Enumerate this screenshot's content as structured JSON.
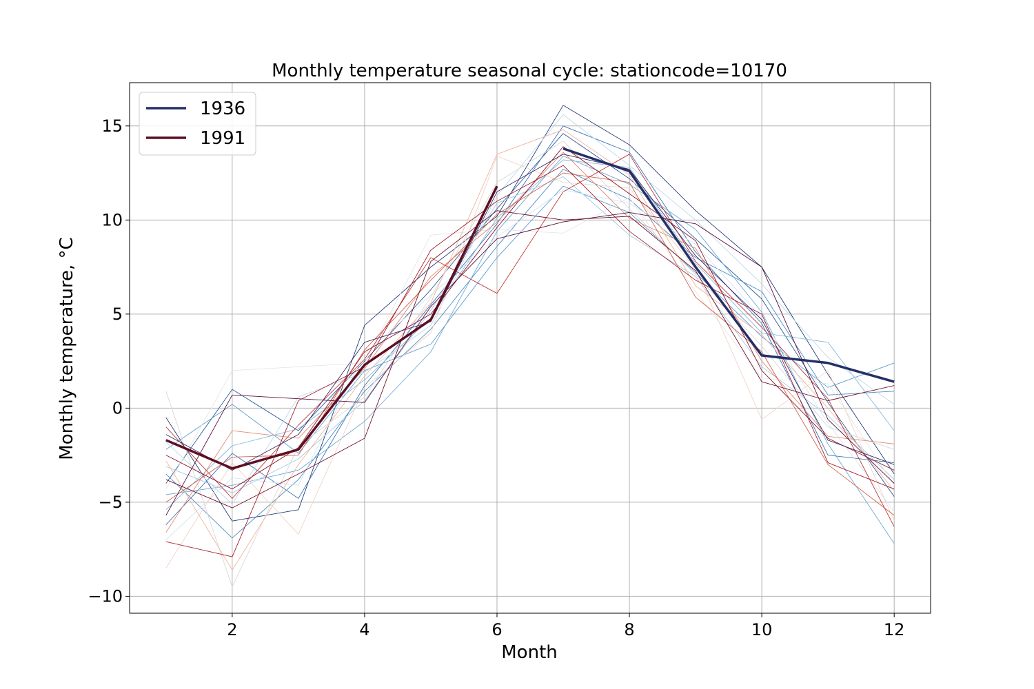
{
  "chart_data": {
    "type": "line",
    "title": "Monthly temperature seasonal cycle: stationcode=10170",
    "xlabel": "Month",
    "ylabel": "Monthly temperature, °C",
    "xlim": [
      0.45,
      12.55
    ],
    "ylim": [
      -10.9,
      17.3
    ],
    "xticks": [
      2,
      4,
      6,
      8,
      10,
      12
    ],
    "yticks": [
      -10,
      -5,
      0,
      5,
      10,
      15
    ],
    "ytick_labels": [
      "−10",
      "−5",
      "0",
      "5",
      "10",
      "15"
    ],
    "grid": true,
    "legend": {
      "placement": "top-left",
      "entries": [
        "1936",
        "1991"
      ]
    },
    "colors": {
      "highlight_1936": "#242f67",
      "highlight_1991": "#5e0f22",
      "cold_ramp": "#2166ac",
      "warm_ramp": "#b2182b"
    },
    "months": [
      1,
      2,
      3,
      4,
      5,
      6,
      7,
      8,
      9,
      10,
      11,
      12
    ],
    "series": [
      {
        "name": "1936",
        "highlight": true,
        "color": "#242f67",
        "values": [
          null,
          null,
          null,
          null,
          null,
          null,
          13.8,
          12.6,
          7.5,
          2.8,
          2.4,
          1.4
        ]
      },
      {
        "name": "1991",
        "highlight": true,
        "color": "#5e0f22",
        "values": [
          -1.7,
          -3.2,
          -2.2,
          2.3,
          4.7,
          11.8,
          null,
          null,
          null,
          null,
          null,
          null
        ]
      },
      {
        "color": "#223d7a",
        "values": [
          -0.5,
          -6.0,
          -5.4,
          4.4,
          7.5,
          10.2,
          16.1,
          14.0,
          10.5,
          7.5,
          1.8,
          -3.5
        ]
      },
      {
        "color": "#2d5a9a",
        "values": [
          -4.0,
          1.0,
          -1.2,
          2.5,
          6.3,
          10.6,
          14.6,
          12.2,
          9.0,
          5.8,
          0.3,
          -4.7
        ]
      },
      {
        "color": "#3a75b5",
        "values": [
          -6.2,
          -2.4,
          -4.8,
          1.2,
          5.5,
          9.8,
          15.0,
          13.6,
          8.3,
          4.5,
          -2.5,
          -2.9
        ]
      },
      {
        "color": "#4a8bc4",
        "values": [
          -3.5,
          -6.9,
          -3.8,
          0.9,
          4.2,
          8.6,
          12.7,
          11.1,
          8.0,
          6.2,
          0.7,
          0.9
        ]
      },
      {
        "color": "#5c9ccd",
        "values": [
          -2.2,
          0.2,
          -2.4,
          2.0,
          3.4,
          8.0,
          11.8,
          10.4,
          7.2,
          3.8,
          1.1,
          2.4
        ]
      },
      {
        "color": "#6ea8d4",
        "values": [
          -4.6,
          -4.1,
          -3.3,
          -0.7,
          3.0,
          9.4,
          13.4,
          11.9,
          9.5,
          5.1,
          -1.9,
          -7.2
        ]
      },
      {
        "color": "#86b8dc",
        "values": [
          -5.4,
          -2.0,
          -1.1,
          1.5,
          4.8,
          10.1,
          13.2,
          12.8,
          7.7,
          4.0,
          3.5,
          -1.2
        ]
      },
      {
        "color": "#a3cae5",
        "values": [
          -3.1,
          -4.5,
          -2.7,
          0.4,
          5.2,
          10.9,
          12.3,
          9.2,
          7.0,
          2.2,
          -0.4,
          -3.8
        ]
      },
      {
        "color": "#bdd9ec",
        "values": [
          -1.8,
          -5.1,
          0.6,
          1.9,
          4.4,
          11.3,
          15.6,
          12.9,
          10.0,
          6.6,
          2.7,
          0.2
        ]
      },
      {
        "color": "#d3e5f0",
        "values": [
          -7.0,
          -3.7,
          -4.1,
          2.9,
          6.0,
          9.1,
          11.6,
          10.9,
          8.7,
          4.8,
          -0.8,
          -5.5
        ]
      },
      {
        "color": "#e6e6e6",
        "values": [
          -4.3,
          2.0,
          2.2,
          2.4,
          9.2,
          9.5,
          9.3,
          11.2,
          6.2,
          1.6,
          1.3,
          -4.1
        ]
      },
      {
        "color": "#d8d8d8",
        "values": [
          0.9,
          -9.5,
          -2.0,
          0.6,
          5.9,
          12.0,
          14.2,
          10.6,
          7.1,
          3.3,
          -1.0,
          -2.2
        ]
      },
      {
        "color": "#f1d3c4",
        "values": [
          -8.5,
          -2.9,
          -6.7,
          1.1,
          4.0,
          13.4,
          12.0,
          11.7,
          7.4,
          -0.6,
          2.0,
          -6.0
        ]
      },
      {
        "color": "#f0b49a",
        "values": [
          -2.8,
          -8.6,
          -3.0,
          1.7,
          5.6,
          13.5,
          14.8,
          12.4,
          6.5,
          3.9,
          0.0,
          -4.4
        ]
      },
      {
        "color": "#e48a6e",
        "values": [
          -6.6,
          -1.2,
          -1.6,
          2.1,
          7.0,
          9.9,
          13.6,
          10.1,
          8.5,
          2.5,
          -1.5,
          -1.9
        ]
      },
      {
        "color": "#d2604d",
        "values": [
          -5.0,
          -2.6,
          -2.5,
          3.1,
          6.8,
          10.3,
          12.5,
          12.0,
          5.9,
          3.0,
          -3.0,
          -5.7
        ]
      },
      {
        "color": "#bf3a38",
        "values": [
          -1.0,
          -4.8,
          -0.9,
          2.6,
          8.0,
          6.1,
          11.5,
          13.5,
          7.8,
          4.3,
          0.5,
          -6.3
        ]
      },
      {
        "color": "#a51f2e",
        "values": [
          -7.1,
          -7.9,
          0.4,
          2.2,
          8.4,
          11.0,
          12.9,
          9.4,
          6.8,
          5.0,
          -2.9,
          -4.3
        ]
      },
      {
        "color": "#8a1529",
        "values": [
          -2.5,
          -4.3,
          -2.1,
          3.0,
          5.0,
          9.6,
          13.9,
          11.4,
          8.9,
          2.0,
          -1.6,
          -3.3
        ]
      },
      {
        "color": "#6f1027",
        "values": [
          -3.8,
          -5.3,
          -3.5,
          -1.6,
          7.8,
          10.5,
          10.0,
          10.2,
          7.3,
          1.4,
          0.4,
          1.2
        ]
      },
      {
        "color": "#5a1038",
        "values": [
          -5.7,
          0.7,
          0.5,
          0.3,
          5.4,
          9.0,
          9.9,
          10.4,
          9.8,
          7.5,
          -0.6,
          -4.0
        ]
      },
      {
        "color": "#3f2a63",
        "values": [
          -1.4,
          -3.3,
          -1.4,
          3.5,
          4.6,
          11.5,
          13.5,
          12.7,
          8.1,
          4.7,
          -1.7,
          -3.0
        ]
      }
    ]
  }
}
